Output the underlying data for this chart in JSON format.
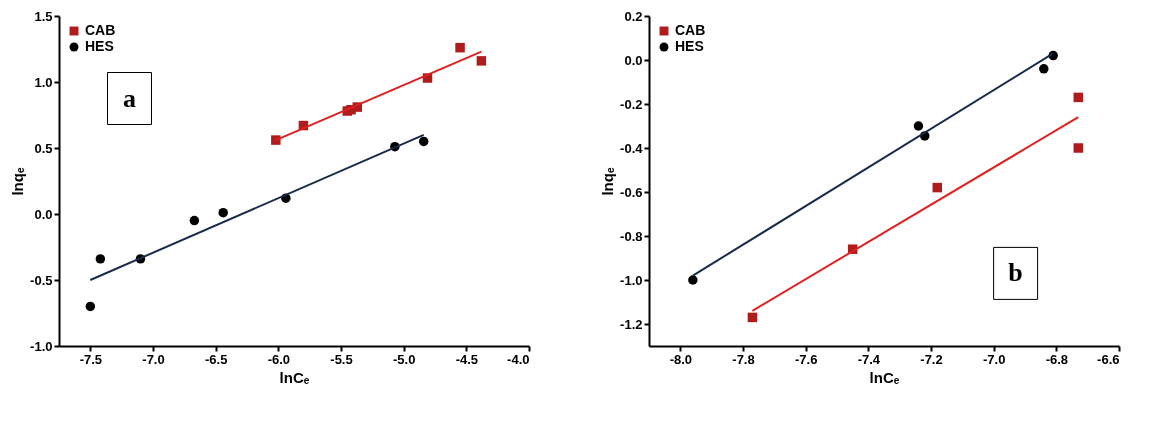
{
  "chart_data": [
    {
      "type": "scatter",
      "xlabel": "lnCₑ",
      "ylabel": "lnqₑ",
      "annotations": [
        "a"
      ],
      "legend": "top left",
      "grid": false,
      "xlim": [
        -7.75,
        -4.0
      ],
      "ylim": [
        -1.0,
        1.5
      ],
      "xticks": [
        {
          "value": -7.5,
          "label": "-7.5"
        },
        {
          "value": -7.0,
          "label": "-7.0"
        },
        {
          "value": -6.5,
          "label": "-6.5"
        },
        {
          "value": -6.0,
          "label": "-6.0"
        },
        {
          "value": -5.5,
          "label": "-5.5"
        },
        {
          "value": -5.0,
          "label": "-5.0"
        },
        {
          "value": -4.5,
          "label": "-4.5"
        },
        {
          "value": -4.0,
          "label": "-4.0"
        }
      ],
      "yticks": [
        {
          "value": -1.0,
          "label": "-1.0"
        },
        {
          "value": -0.5,
          "label": "-0.5"
        },
        {
          "value": 0.0,
          "label": "0.0"
        },
        {
          "value": 0.5,
          "label": "0.5"
        },
        {
          "value": 1.0,
          "label": "1.0"
        },
        {
          "value": 1.5,
          "label": "1.5"
        }
      ],
      "series": [
        {
          "name": "CAB",
          "type": "scatter",
          "marker": "square",
          "color": "#b01c1c",
          "x": [
            -6.02,
            -5.8,
            -5.45,
            -5.42,
            -5.37,
            -4.81,
            -4.55,
            -4.38
          ],
          "values": [
            0.56,
            0.67,
            0.78,
            0.79,
            0.81,
            1.03,
            1.26,
            1.16
          ]
        },
        {
          "name": "HES",
          "type": "scatter",
          "marker": "circle",
          "color": "#000000",
          "x": [
            -7.5,
            -7.42,
            -7.1,
            -6.67,
            -6.44,
            -5.94,
            -5.07,
            -4.84
          ],
          "values": [
            -0.7,
            -0.34,
            -0.34,
            -0.05,
            0.01,
            0.12,
            0.51,
            0.55
          ]
        },
        {
          "type": "line",
          "color": "#e02020",
          "x": [
            -6.02,
            -4.38
          ],
          "values": [
            0.56,
            1.23
          ]
        },
        {
          "type": "line",
          "color": "#1a2a4a",
          "x": [
            -7.5,
            -4.84
          ],
          "values": [
            -0.5,
            0.6
          ]
        }
      ]
    },
    {
      "type": "scatter",
      "xlabel": "lnCₑ",
      "ylabel": "lnqₑ",
      "annotations": [
        "b"
      ],
      "legend": "top left",
      "grid": false,
      "xlim": [
        -8.1,
        -6.6
      ],
      "ylim": [
        -1.3,
        0.2
      ],
      "xticks": [
        {
          "value": -8.0,
          "label": "-8.0"
        },
        {
          "value": -7.8,
          "label": "-7.8"
        },
        {
          "value": -7.6,
          "label": "-7.6"
        },
        {
          "value": -7.4,
          "label": "-7.4"
        },
        {
          "value": -7.2,
          "label": "-7.2"
        },
        {
          "value": -7.0,
          "label": "-7.0"
        },
        {
          "value": -6.8,
          "label": "-6.8"
        },
        {
          "value": -6.6,
          "label": "-6.6"
        }
      ],
      "yticks": [
        {
          "value": -1.2,
          "label": "-1.2"
        },
        {
          "value": -1.0,
          "label": "-1.0"
        },
        {
          "value": -0.8,
          "label": "-0.8"
        },
        {
          "value": -0.6,
          "label": "-0.6"
        },
        {
          "value": -0.4,
          "label": "-0.4"
        },
        {
          "value": -0.2,
          "label": "-0.2"
        },
        {
          "value": 0.0,
          "label": "0.0"
        },
        {
          "value": 0.2,
          "label": "0.2"
        }
      ],
      "series": [
        {
          "name": "CAB",
          "type": "scatter",
          "marker": "square",
          "color": "#b01c1c",
          "x": [
            -7.77,
            -7.45,
            -7.18,
            -6.73,
            -6.73
          ],
          "values": [
            -1.17,
            -0.86,
            -0.58,
            -0.17,
            -0.4
          ]
        },
        {
          "name": "HES",
          "type": "scatter",
          "marker": "circle",
          "color": "#000000",
          "x": [
            -7.96,
            -7.24,
            -7.22,
            -6.84,
            -6.81
          ],
          "values": [
            -1.0,
            -0.3,
            -0.345,
            -0.04,
            0.02
          ]
        },
        {
          "type": "line",
          "color": "#e02020",
          "x": [
            -7.77,
            -6.73
          ],
          "values": [
            -1.14,
            -0.26
          ]
        },
        {
          "type": "line",
          "color": "#1a2a4a",
          "x": [
            -7.96,
            -6.81
          ],
          "values": [
            -0.98,
            0.03
          ]
        }
      ]
    }
  ]
}
